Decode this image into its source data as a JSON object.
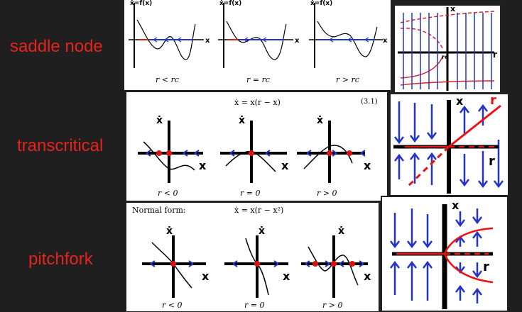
{
  "rows": {
    "saddle": {
      "title": "saddle node",
      "plot_ylabel": "ẋ=f(x)",
      "plot_xlabel": "x",
      "cases": [
        "r < rⱼ",
        "r = rⱼ",
        "r > rⱼ"
      ],
      "cases_text": [
        "r < rc",
        "r = rc",
        "r > rc"
      ],
      "bif_x": "x",
      "bif_r": "r",
      "bif_rc": "rc"
    },
    "transcritical": {
      "title": "transcritical",
      "equation": "ẋ = x(r − x)",
      "eqnum": "(3.1)",
      "plot_ylabel": "ẋ",
      "plot_xlabel": "x",
      "cases": [
        "r < 0",
        "r = 0",
        "r > 0"
      ],
      "bif_x": "x",
      "bif_r_top": "r",
      "bif_r": "r"
    },
    "pitchfork": {
      "title": "pitchfork",
      "normal_form": "Normal form:",
      "equation": "ẋ = x(r − x²)",
      "plot_ylabel": "ẋ",
      "plot_xlabel": "x",
      "cases": [
        "r < 0",
        "r = 0",
        "r > 0"
      ],
      "bif_x": "x",
      "bif_r": "r"
    }
  },
  "colors": {
    "label_red": "#e8231c",
    "arrow_blue": "#2233cc",
    "dot_red": "#dd1111",
    "background": "#1f1f1f"
  }
}
